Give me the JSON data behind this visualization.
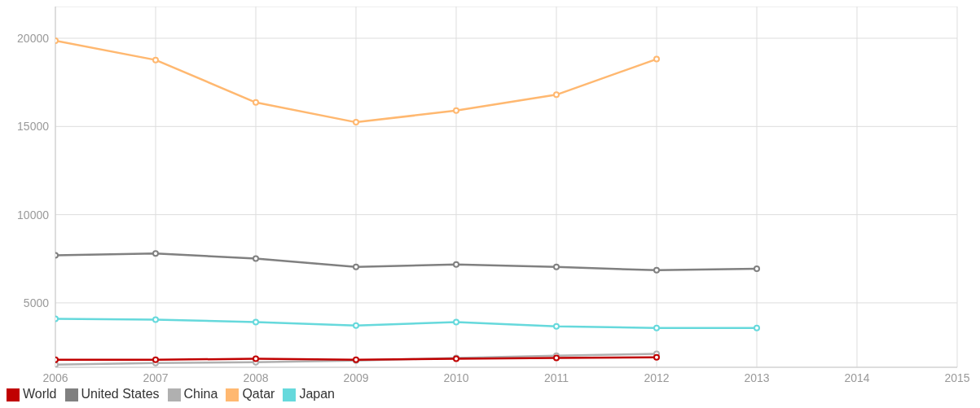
{
  "chart_data": {
    "type": "line",
    "x": [
      2006,
      2007,
      2008,
      2009,
      2010,
      2011,
      2012,
      2013
    ],
    "series": [
      {
        "name": "World",
        "color": "#c00000",
        "values": [
          1780,
          1780,
          1830,
          1780,
          1830,
          1880,
          1920,
          null
        ]
      },
      {
        "name": "United States",
        "color": "#808080",
        "values": [
          7700,
          7800,
          7510,
          7040,
          7180,
          7040,
          6850,
          6940
        ]
      },
      {
        "name": "China",
        "color": "#b0b0b0",
        "values": [
          1500,
          1590,
          1640,
          1730,
          1880,
          2010,
          2110,
          null
        ]
      },
      {
        "name": "Qatar",
        "color": "#ffb870",
        "values": [
          19860,
          18770,
          16360,
          15240,
          15900,
          16800,
          18820,
          null
        ]
      },
      {
        "name": "Japan",
        "color": "#66d9dc",
        "values": [
          4100,
          4050,
          3910,
          3720,
          3910,
          3670,
          3580,
          3580
        ]
      }
    ],
    "xlim": [
      2006,
      2015
    ],
    "xticks": [
      2006,
      2007,
      2008,
      2009,
      2010,
      2011,
      2012,
      2013,
      2014,
      2015
    ],
    "ylim": [
      1350,
      21800
    ],
    "yticks": [
      5000,
      10000,
      15000,
      20000
    ],
    "grid": true,
    "legend": "bottom left",
    "marker": "circle",
    "line_style": "solid"
  }
}
